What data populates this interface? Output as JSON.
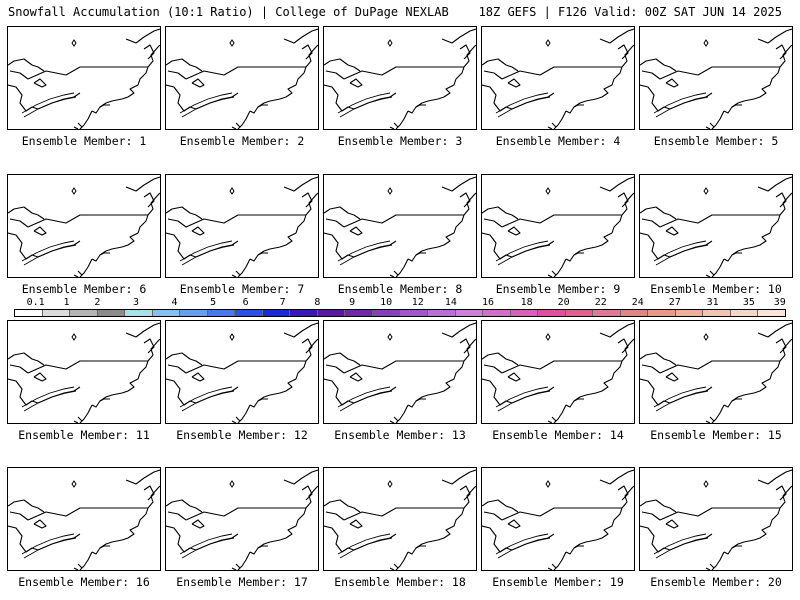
{
  "header": {
    "left": "Snowfall Accumulation (10:1 Ratio) | College of DuPage NEXLAB",
    "right": "18Z GEFS | F126 Valid: 00Z SAT JUN 14 2025"
  },
  "panels": [
    {
      "label": "Ensemble Member: 1"
    },
    {
      "label": "Ensemble Member: 2"
    },
    {
      "label": "Ensemble Member: 3"
    },
    {
      "label": "Ensemble Member: 4"
    },
    {
      "label": "Ensemble Member: 5"
    },
    {
      "label": "Ensemble Member: 6"
    },
    {
      "label": "Ensemble Member: 7"
    },
    {
      "label": "Ensemble Member: 8"
    },
    {
      "label": "Ensemble Member: 9"
    },
    {
      "label": "Ensemble Member: 10"
    },
    {
      "label": "Ensemble Member: 11"
    },
    {
      "label": "Ensemble Member: 12"
    },
    {
      "label": "Ensemble Member: 13"
    },
    {
      "label": "Ensemble Member: 14"
    },
    {
      "label": "Ensemble Member: 15"
    },
    {
      "label": "Ensemble Member: 16"
    },
    {
      "label": "Ensemble Member: 17"
    },
    {
      "label": "Ensemble Member: 18"
    },
    {
      "label": "Ensemble Member: 19"
    },
    {
      "label": "Ensemble Member: 20"
    }
  ],
  "colorbar": {
    "labels": [
      "0.1",
      "1",
      "2",
      "3",
      "4",
      "5",
      "6",
      "7",
      "8",
      "9",
      "10",
      "12",
      "14",
      "16",
      "18",
      "20",
      "22",
      "24",
      "27",
      "31",
      "35",
      "39"
    ],
    "colors": [
      "#ffffff",
      "#dcdcdc",
      "#b4b4b4",
      "#8c8c8c",
      "#a8e0e8",
      "#86bff0",
      "#6a9cf0",
      "#4a78ec",
      "#2a50e6",
      "#1a2ad8",
      "#3a18b8",
      "#5a18a0",
      "#7028a8",
      "#8840b8",
      "#a058c8",
      "#b870d4",
      "#cc80d8",
      "#d070c8",
      "#d860b8",
      "#e050a0",
      "#e06090",
      "#e07898",
      "#e08880",
      "#e89a88",
      "#eeb098",
      "#f2c4b0",
      "#f6d6c4",
      "#f8e4d8"
    ]
  }
}
